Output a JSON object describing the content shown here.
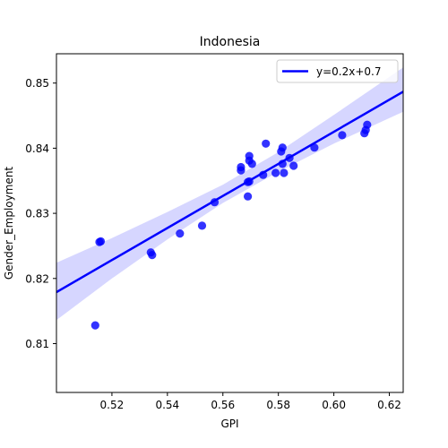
{
  "chart_data": {
    "type": "scatter",
    "title": "Indonesia",
    "xlabel": "GPI",
    "ylabel": "Gender_Employment",
    "xlim": [
      0.5,
      0.625
    ],
    "ylim": [
      0.8025,
      0.8545
    ],
    "xticks": [
      0.52,
      0.54,
      0.56,
      0.58,
      0.6,
      0.62
    ],
    "xtick_labels": [
      "0.52",
      "0.54",
      "0.56",
      "0.58",
      "0.60",
      "0.62"
    ],
    "yticks": [
      0.81,
      0.82,
      0.83,
      0.84,
      0.85
    ],
    "ytick_labels": [
      "0.81",
      "0.82",
      "0.83",
      "0.84",
      "0.85"
    ],
    "grid": false,
    "legend_position": "top-right",
    "points": [
      {
        "x": 0.514,
        "y": 0.8128
      },
      {
        "x": 0.5155,
        "y": 0.8256
      },
      {
        "x": 0.516,
        "y": 0.8257
      },
      {
        "x": 0.534,
        "y": 0.824
      },
      {
        "x": 0.5345,
        "y": 0.8236
      },
      {
        "x": 0.5445,
        "y": 0.8269
      },
      {
        "x": 0.5525,
        "y": 0.8281
      },
      {
        "x": 0.557,
        "y": 0.8317
      },
      {
        "x": 0.5665,
        "y": 0.8366
      },
      {
        "x": 0.5665,
        "y": 0.8371
      },
      {
        "x": 0.569,
        "y": 0.8348
      },
      {
        "x": 0.5695,
        "y": 0.8349
      },
      {
        "x": 0.569,
        "y": 0.8326
      },
      {
        "x": 0.5695,
        "y": 0.8381
      },
      {
        "x": 0.5695,
        "y": 0.8388
      },
      {
        "x": 0.5705,
        "y": 0.8376
      },
      {
        "x": 0.5745,
        "y": 0.8359
      },
      {
        "x": 0.5755,
        "y": 0.8407
      },
      {
        "x": 0.579,
        "y": 0.8362
      },
      {
        "x": 0.581,
        "y": 0.8395
      },
      {
        "x": 0.5815,
        "y": 0.8401
      },
      {
        "x": 0.5815,
        "y": 0.8376
      },
      {
        "x": 0.582,
        "y": 0.8362
      },
      {
        "x": 0.584,
        "y": 0.8385
      },
      {
        "x": 0.5855,
        "y": 0.8373
      },
      {
        "x": 0.593,
        "y": 0.8401
      },
      {
        "x": 0.603,
        "y": 0.842
      },
      {
        "x": 0.611,
        "y": 0.8423
      },
      {
        "x": 0.6115,
        "y": 0.8428
      },
      {
        "x": 0.612,
        "y": 0.8436
      }
    ],
    "regression": {
      "label": "y=0.2x+0.7",
      "slope": 0.2462,
      "intercept": 0.6948,
      "ci": [
        {
          "x": 0.5,
          "lo": 0.8136,
          "hi": 0.8224
        },
        {
          "x": 0.52,
          "lo": 0.82,
          "hi": 0.8262
        },
        {
          "x": 0.54,
          "lo": 0.826,
          "hi": 0.8302
        },
        {
          "x": 0.56,
          "lo": 0.8316,
          "hi": 0.8344
        },
        {
          "x": 0.58,
          "lo": 0.8364,
          "hi": 0.8394
        },
        {
          "x": 0.6,
          "lo": 0.8407,
          "hi": 0.8451
        },
        {
          "x": 0.625,
          "lo": 0.8456,
          "hi": 0.8524
        }
      ]
    },
    "colors": {
      "points": "#0000ff",
      "line": "#0000ff",
      "band": "#ccccff",
      "axis": "#000000"
    }
  }
}
